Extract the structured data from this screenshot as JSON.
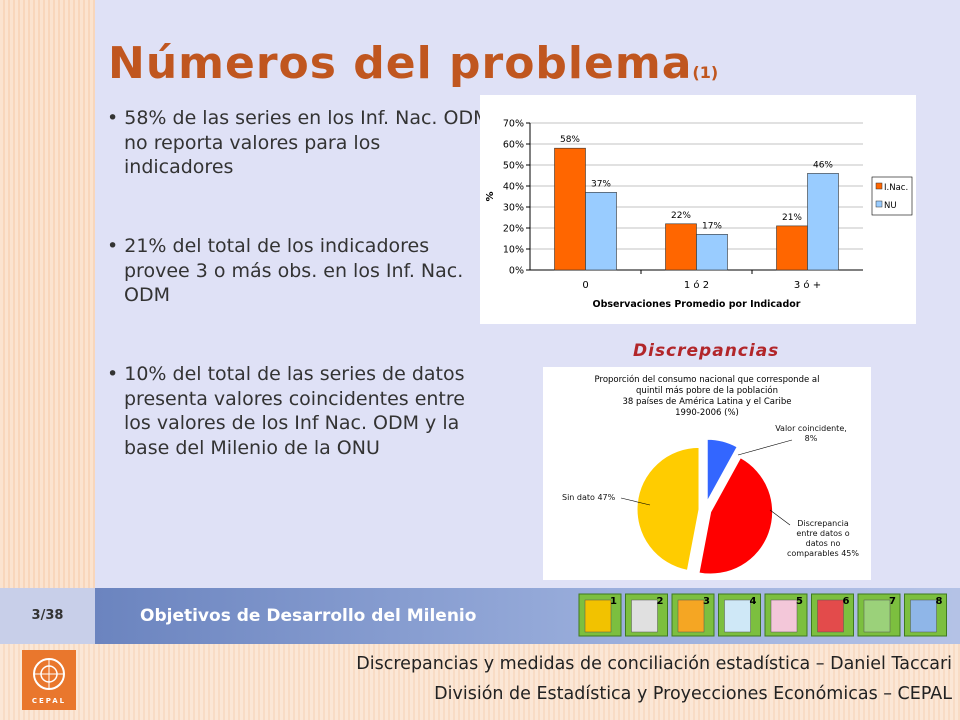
{
  "slide": {
    "title": "Números del problema",
    "title_suffix": "(1)",
    "bullets": [
      "58% de las series en los Inf. Nac. ODM no reporta valores para los indicadores",
      "21% del total de los indicadores provee 3 o más obs. en los Inf. Nac. ODM",
      "10% del total de las series de datos presenta valores coincidentes entre los valores de los Inf Nac. ODM y la base del Milenio de la ONU"
    ],
    "pie_heading": "Discrepancias"
  },
  "footer": {
    "page": "3/38",
    "band_title": "Objetivos de Desarrollo del Milenio",
    "goal_icons": [
      1,
      2,
      3,
      4,
      5,
      6,
      7,
      8
    ],
    "line1": "Discrepancias y medidas de conciliación estadística – Daniel Taccari",
    "line2": "División de Estadística y Proyecciones Económicas – CEPAL",
    "logo_text": "CEPAL"
  },
  "chart_data": [
    {
      "type": "bar",
      "categories": [
        "0",
        "1 ó 2",
        "3 ó +"
      ],
      "series": [
        {
          "name": "I.Nac.",
          "color": "#ff6600",
          "values": [
            58,
            22,
            21
          ],
          "value_labels": [
            "58%",
            "22%",
            "21%"
          ]
        },
        {
          "name": "NU",
          "color": "#99ccff",
          "values": [
            37,
            17,
            46
          ],
          "value_labels": [
            "37%",
            "17%",
            "46%"
          ]
        }
      ],
      "xlabel": "Observaciones Promedio por Indicador",
      "ylabel": "%",
      "ylim": [
        0,
        70
      ],
      "yticks": [
        {
          "value": 0,
          "label": "0%"
        },
        {
          "value": 10,
          "label": "10%"
        },
        {
          "value": 20,
          "label": "20%"
        },
        {
          "value": 30,
          "label": "30%"
        },
        {
          "value": 40,
          "label": "40%"
        },
        {
          "value": 50,
          "label": "50%"
        },
        {
          "value": 60,
          "label": "60%"
        },
        {
          "value": 70,
          "label": "70%"
        }
      ],
      "legend": "right"
    },
    {
      "type": "pie",
      "title_lines": [
        "Proporción del consumo nacional que corresponde al",
        "quintil más pobre de la población",
        "38 países de América Latina y el Caribe",
        "1990-2006 (%)"
      ],
      "categories": [
        "Valor coincidente",
        "Discrepancia entre datos o datos no comparables",
        "Sin dato"
      ],
      "values": [
        8,
        45,
        47
      ],
      "value_labels": [
        "Valor coincidente, 8%",
        "Discrepancia entre datos o datos no comparables 45%",
        "Sin dato 47%"
      ],
      "colors": [
        "#3366ff",
        "#ff0000",
        "#ffcc00"
      ]
    }
  ]
}
